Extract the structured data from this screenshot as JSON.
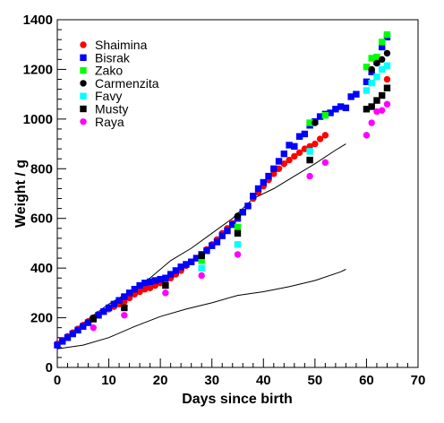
{
  "chart_data": {
    "type": "scatter",
    "title": "",
    "xlabel": "Days since birth",
    "ylabel": "Weight / g",
    "xlim": [
      0,
      70
    ],
    "ylim": [
      0,
      1400
    ],
    "xticks": [
      0,
      10,
      20,
      30,
      40,
      50,
      60,
      70
    ],
    "yticks": [
      0,
      200,
      400,
      600,
      800,
      1000,
      1200,
      1400
    ],
    "grid": false,
    "legend_position": "top-left",
    "series": [
      {
        "name": "Shaimina",
        "color": "#ff0000",
        "marker": "circle",
        "x": [
          0,
          1,
          2,
          3,
          4,
          5,
          6,
          7,
          8,
          9,
          10,
          11,
          12,
          13,
          14,
          15,
          16,
          17,
          18,
          19,
          20,
          21,
          22,
          23,
          24,
          25,
          26,
          27,
          28,
          29,
          30,
          31,
          32,
          33,
          34,
          35,
          36,
          37,
          38,
          39,
          40,
          41,
          42,
          43,
          44,
          45,
          46,
          47,
          48,
          49,
          50,
          51,
          52,
          64
        ],
        "y": [
          95,
          110,
          125,
          140,
          155,
          170,
          185,
          200,
          215,
          225,
          235,
          245,
          255,
          265,
          280,
          295,
          305,
          315,
          320,
          330,
          340,
          350,
          360,
          375,
          390,
          410,
          425,
          440,
          455,
          475,
          495,
          515,
          540,
          560,
          580,
          600,
          625,
          650,
          680,
          705,
          730,
          755,
          780,
          800,
          820,
          835,
          850,
          865,
          880,
          890,
          900,
          920,
          935,
          1160
        ]
      },
      {
        "name": "Bisrak",
        "color": "#0000ff",
        "marker": "square",
        "x": [
          0,
          1,
          2,
          3,
          4,
          5,
          6,
          7,
          8,
          9,
          10,
          11,
          12,
          13,
          14,
          15,
          16,
          17,
          18,
          19,
          20,
          21,
          22,
          23,
          24,
          25,
          26,
          27,
          28,
          29,
          30,
          31,
          32,
          33,
          34,
          35,
          36,
          37,
          38,
          39,
          40,
          41,
          42,
          43,
          44,
          45,
          46,
          47,
          48,
          49,
          50,
          51,
          52,
          53,
          54,
          55,
          56,
          57,
          58,
          60,
          61,
          62,
          63,
          64
        ],
        "y": [
          90,
          105,
          120,
          135,
          150,
          165,
          180,
          195,
          210,
          225,
          240,
          255,
          270,
          285,
          300,
          315,
          330,
          340,
          345,
          350,
          355,
          360,
          375,
          390,
          405,
          415,
          425,
          440,
          455,
          470,
          490,
          505,
          530,
          550,
          575,
          600,
          625,
          650,
          690,
          720,
          745,
          770,
          800,
          830,
          860,
          895,
          890,
          930,
          940,
          975,
          990,
          1010,
          1020,
          1025,
          1040,
          1050,
          1045,
          1090,
          1100,
          1150,
          1190,
          1230,
          1290,
          1330
        ]
      },
      {
        "name": "Zako",
        "color": "#00ff00",
        "marker": "square",
        "x": [
          28,
          35,
          49,
          52,
          60,
          61,
          62,
          63,
          64
        ],
        "y": [
          430,
          565,
          985,
          1015,
          1210,
          1245,
          1250,
          1310,
          1340
        ]
      },
      {
        "name": "Carmenzita",
        "color": "#000000",
        "marker": "circle",
        "x": [
          7,
          28,
          35,
          50,
          61,
          62,
          63,
          64
        ],
        "y": [
          200,
          450,
          610,
          985,
          1200,
          1225,
          1240,
          1265
        ]
      },
      {
        "name": "Favy",
        "color": "#00ffff",
        "marker": "square",
        "x": [
          28,
          35,
          49,
          60,
          61,
          62,
          63,
          64
        ],
        "y": [
          400,
          495,
          870,
          1115,
          1145,
          1170,
          1200,
          1215
        ]
      },
      {
        "name": "Musty",
        "color": "#000000",
        "marker": "square",
        "x": [
          7,
          13,
          21,
          28,
          35,
          49,
          60,
          61,
          62,
          63,
          64
        ],
        "y": [
          195,
          240,
          330,
          450,
          540,
          835,
          1040,
          1050,
          1075,
          1095,
          1125
        ]
      },
      {
        "name": "Raya",
        "color": "#ff00ff",
        "marker": "circle",
        "x": [
          7,
          13,
          21,
          28,
          35,
          49,
          52,
          60,
          61,
          62,
          63,
          64
        ],
        "y": [
          160,
          210,
          300,
          370,
          455,
          770,
          825,
          935,
          985,
          1030,
          1035,
          1060
        ]
      }
    ],
    "reference_lines": [
      {
        "color": "#000000",
        "x": [
          0,
          3,
          6,
          10,
          14,
          18,
          22,
          26,
          30,
          34,
          38,
          42,
          46,
          50,
          54,
          56
        ],
        "y": [
          95,
          145,
          195,
          255,
          305,
          360,
          430,
          480,
          540,
          600,
          680,
          720,
          770,
          820,
          875,
          900
        ]
      },
      {
        "color": "#000000",
        "x": [
          0,
          5,
          10,
          15,
          20,
          25,
          30,
          35,
          40,
          45,
          50,
          55,
          56
        ],
        "y": [
          75,
          90,
          120,
          165,
          205,
          235,
          260,
          290,
          305,
          325,
          350,
          385,
          395
        ]
      }
    ]
  }
}
